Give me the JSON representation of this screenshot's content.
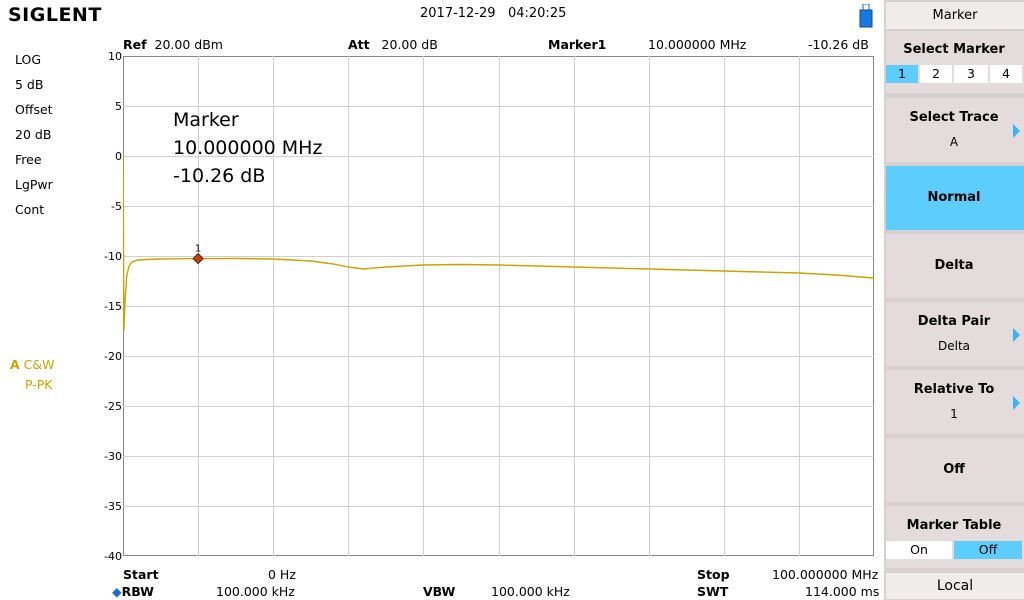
{
  "header": {
    "brand": "SIGLENT",
    "date": "2017-12-29",
    "time": "04:20:25",
    "ref_label": "Ref",
    "ref_value": "20.00 dBm",
    "att_label": "Att",
    "att_value": "20.00 dB",
    "marker_label": "Marker1",
    "marker_freq": "10.000000 MHz",
    "marker_level": "-10.26 dB"
  },
  "left_panel": {
    "scale_type": "LOG",
    "scale_div": "5 dB",
    "offset_label": "Offset",
    "offset_value": "20 dB",
    "trigger": "Free",
    "detector_type": "LgPwr",
    "sweep_mode": "Cont",
    "trace_letter": "A",
    "trace_mode": "C&W",
    "trace_detector": "P-PK",
    "trace_color": "#c9a400"
  },
  "marker_readout": {
    "title": "Marker",
    "freq": "10.000000 MHz",
    "level": "-10.26 dB",
    "marker_number": "1"
  },
  "chart_data": {
    "type": "line",
    "ylabel": "",
    "xlabel": "",
    "y_ticks": [
      "10",
      "5",
      "0",
      "-5",
      "-10",
      "-15",
      "-20",
      "-25",
      "-30",
      "-35",
      "-40"
    ],
    "ylim": [
      -40,
      10
    ],
    "xlim": [
      0,
      100
    ],
    "x_unit": "MHz",
    "grid": true,
    "trace_color": "#c9a400",
    "marker": {
      "x": 10,
      "y": -10.26,
      "color": "#c84010"
    },
    "series": [
      {
        "x": [
          0,
          0.05,
          0.1,
          0.2,
          0.3,
          0.5,
          0.8,
          1.2,
          2,
          3,
          5,
          7,
          10,
          15,
          20,
          25,
          28,
          30,
          32,
          35,
          40,
          45,
          50,
          55,
          60,
          65,
          70,
          75,
          80,
          85,
          90,
          95,
          100
        ],
        "values": [
          0,
          -5,
          -17.5,
          -16,
          -14,
          -12,
          -11,
          -10.6,
          -10.4,
          -10.35,
          -10.3,
          -10.28,
          -10.26,
          -10.25,
          -10.3,
          -10.5,
          -10.8,
          -11.1,
          -11.3,
          -11.1,
          -10.9,
          -10.85,
          -10.9,
          -11.0,
          -11.1,
          -11.2,
          -11.3,
          -11.4,
          -11.5,
          -11.6,
          -11.7,
          -11.9,
          -12.2
        ]
      }
    ]
  },
  "footer": {
    "start_label": "Start",
    "start_value": "0 Hz",
    "stop_label": "Stop",
    "stop_value": "100.000000 MHz",
    "rbw_label": "RBW",
    "rbw_value": "100.000 kHz",
    "vbw_label": "VBW",
    "vbw_value": "100.000 kHz",
    "swt_label": "SWT",
    "swt_value": "114.000 ms"
  },
  "menu": {
    "title": "Marker",
    "select_marker": {
      "label": "Select Marker",
      "options": [
        "1",
        "2",
        "3",
        "4"
      ],
      "selected": "1"
    },
    "select_trace": {
      "label": "Select Trace",
      "value": "A"
    },
    "normal": {
      "label": "Normal"
    },
    "delta": {
      "label": "Delta"
    },
    "delta_pair": {
      "label": "Delta Pair",
      "value": "Delta"
    },
    "relative_to": {
      "label": "Relative To",
      "value": "1"
    },
    "off": {
      "label": "Off"
    },
    "marker_table": {
      "label": "Marker Table",
      "on": "On",
      "off": "Off",
      "selected": "Off"
    },
    "local": "Local",
    "active_color": "#5ccdfc"
  }
}
